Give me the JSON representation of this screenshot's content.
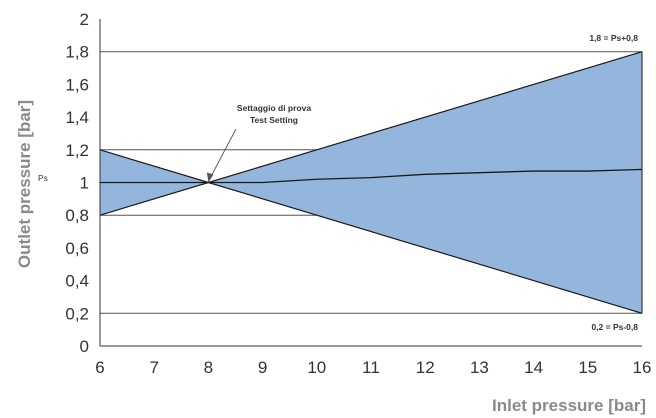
{
  "chart_data": {
    "type": "area",
    "title": "",
    "xlabel": "Inlet pressure [bar]",
    "ylabel": "Outlet pressure [bar]",
    "xlim": [
      6,
      16
    ],
    "ylim": [
      0,
      2
    ],
    "x_ticks": [
      "6",
      "7",
      "8",
      "9",
      "10",
      "11",
      "12",
      "13",
      "14",
      "15",
      "16"
    ],
    "y_ticks": [
      "0",
      "0,2",
      "0,4",
      "0,6",
      "0,8",
      "1",
      "1,2",
      "1,4",
      "1,6",
      "1,8",
      "2"
    ],
    "band": {
      "upper": {
        "x": [
          6,
          8,
          16
        ],
        "y": [
          1.2,
          1.0,
          1.8
        ]
      },
      "lower": {
        "x": [
          6,
          8,
          16
        ],
        "y": [
          0.8,
          1.0,
          0.2
        ]
      }
    },
    "series": [
      {
        "x": [
          6,
          8,
          9,
          10,
          11,
          12,
          13,
          14,
          15,
          16
        ],
        "y": [
          1.0,
          1.0,
          1.0,
          1.02,
          1.03,
          1.05,
          1.06,
          1.07,
          1.07,
          1.08
        ]
      }
    ],
    "reference_lines": [
      1.8,
      1.2,
      0.8,
      0.2
    ],
    "annotations": {
      "setting_line1": "Settaggio di prova",
      "setting_line2": "Test Setting",
      "setting_point": [
        8,
        1.0
      ],
      "ps_label": "Ps",
      "upper_limit": "1,8 = Ps+0,8",
      "lower_limit": "0,2 = Ps-0,8"
    },
    "colors": {
      "band_fill": "#94B6DC",
      "lines": "#1a1a1a",
      "gridlines": "#555555"
    }
  }
}
